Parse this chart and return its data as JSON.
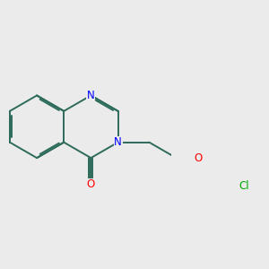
{
  "bg_color": "#ebebeb",
  "bond_color": "#2d6b5a",
  "N_color": "#0000ff",
  "O_color": "#ff0000",
  "Cl_color": "#00aa00",
  "lw": 1.4,
  "dbo": 0.055,
  "figsize": [
    3.0,
    3.0
  ],
  "dpi": 100,
  "xlim": [
    -2.6,
    2.8
  ],
  "ylim": [
    -1.6,
    1.6
  ]
}
